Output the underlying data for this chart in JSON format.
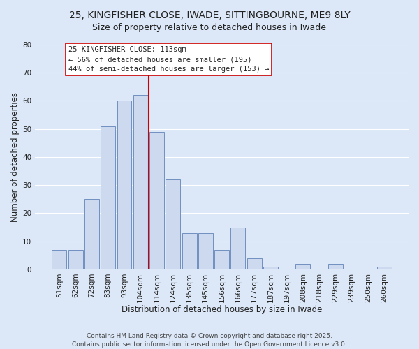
{
  "title": "25, KINGFISHER CLOSE, IWADE, SITTINGBOURNE, ME9 8LY",
  "subtitle": "Size of property relative to detached houses in Iwade",
  "xlabel": "Distribution of detached houses by size in Iwade",
  "ylabel": "Number of detached properties",
  "bar_labels": [
    "51sqm",
    "62sqm",
    "72sqm",
    "83sqm",
    "93sqm",
    "104sqm",
    "114sqm",
    "124sqm",
    "135sqm",
    "145sqm",
    "156sqm",
    "166sqm",
    "177sqm",
    "187sqm",
    "197sqm",
    "208sqm",
    "218sqm",
    "229sqm",
    "239sqm",
    "250sqm",
    "260sqm"
  ],
  "bar_heights": [
    7,
    7,
    25,
    51,
    60,
    62,
    49,
    32,
    13,
    13,
    7,
    15,
    4,
    1,
    0,
    2,
    0,
    2,
    0,
    0,
    1
  ],
  "bar_color": "#ccd9ee",
  "bar_edge_color": "#7090c0",
  "marker_line_color": "#cc0000",
  "annotation_title": "25 KINGFISHER CLOSE: 113sqm",
  "annotation_line1": "← 56% of detached houses are smaller (195)",
  "annotation_line2": "44% of semi-detached houses are larger (153) →",
  "annotation_box_color": "#ffffff",
  "annotation_box_edge": "#cc0000",
  "ylim": [
    0,
    80
  ],
  "yticks": [
    0,
    10,
    20,
    30,
    40,
    50,
    60,
    70,
    80
  ],
  "footer1": "Contains HM Land Registry data © Crown copyright and database right 2025.",
  "footer2": "Contains public sector information licensed under the Open Government Licence v3.0.",
  "background_color": "#dce8f8",
  "grid_color": "#ffffff",
  "title_fontsize": 10,
  "subtitle_fontsize": 9,
  "axis_label_fontsize": 8.5,
  "tick_fontsize": 7.5,
  "annotation_fontsize": 7.5,
  "footer_fontsize": 6.5
}
